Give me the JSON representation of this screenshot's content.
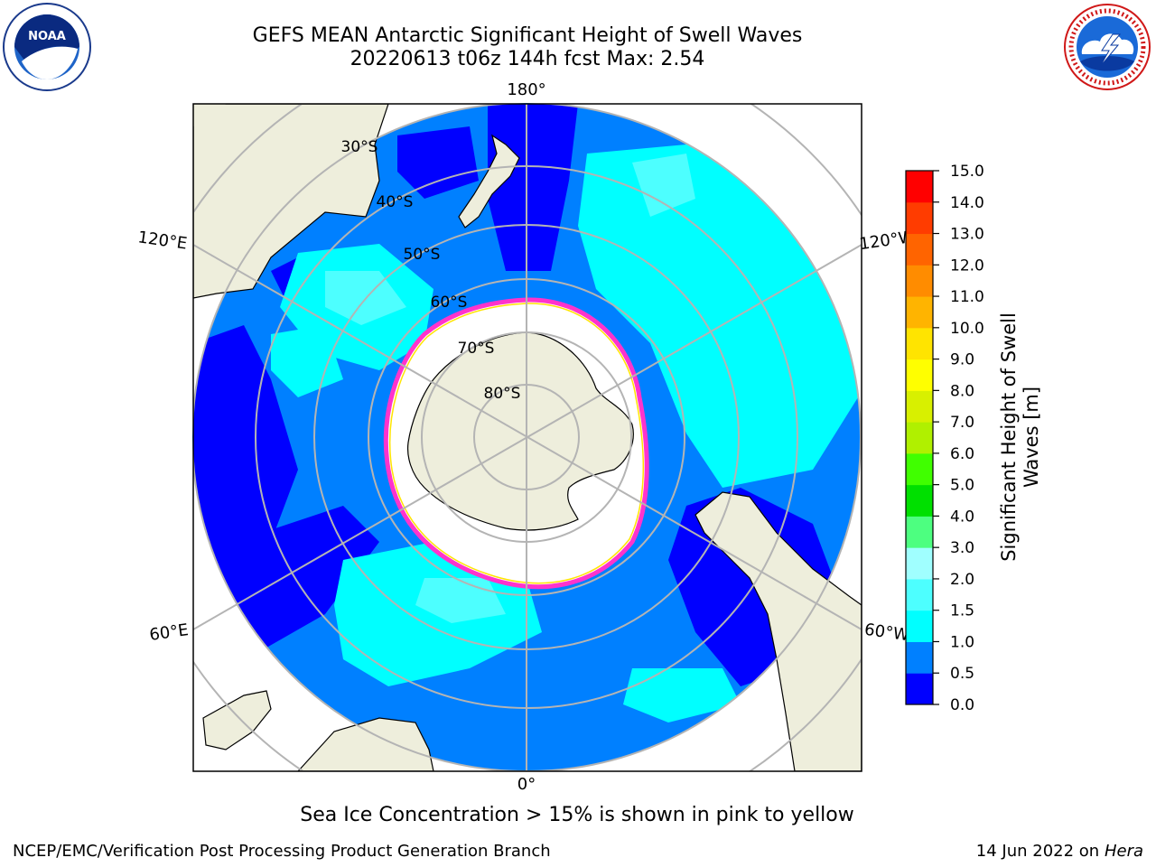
{
  "header": {
    "title_line1": "GEFS MEAN Antarctic Significant Height of Swell Waves",
    "title_line2": "20220613 t06z 144h fcst   Max: 2.54"
  },
  "logos": {
    "left": {
      "icon": "noaa-logo",
      "text": "NOAA",
      "ring_text": "NATIONAL OCEANIC AND ATMOSPHERIC ADMINISTRATION · U.S. DEPARTMENT OF COMMERCE"
    },
    "right": {
      "icon": "nws-logo",
      "ring_text": "NATIONAL WEATHER SERVICE"
    }
  },
  "map": {
    "projection": "south-polar-stereographic",
    "lon_labels": {
      "top": "180°",
      "bottom": "0°",
      "upper_left": "120°E",
      "upper_right": "120°W",
      "lower_left": "60°E",
      "lower_right": "60°W"
    },
    "lat_labels": [
      "30°S",
      "40°S",
      "50°S",
      "60°S",
      "70°S",
      "80°S"
    ],
    "colors": {
      "land": "#eeeedc",
      "ice": "#ffffff",
      "ice_edge": "#ff33cc",
      "grid": "#b4b4b4"
    }
  },
  "colorbar": {
    "label": "Significant Height of Swell Waves [m]",
    "label_line1": "Significant Height of Swell",
    "label_line2": "Waves [m]",
    "ticks": [
      "0.0",
      "0.5",
      "1.0",
      "1.5",
      "2.0",
      "3.0",
      "4.0",
      "5.0",
      "6.0",
      "7.0",
      "8.0",
      "9.0",
      "10.0",
      "11.0",
      "12.0",
      "13.0",
      "14.0",
      "15.0"
    ],
    "colors": [
      "#0000ff",
      "#0080ff",
      "#00ffff",
      "#4dffff",
      "#a0ffff",
      "#4dff80",
      "#00e000",
      "#40ff00",
      "#b0f000",
      "#d8f000",
      "#ffff00",
      "#ffe400",
      "#ffb400",
      "#ff8c00",
      "#ff6400",
      "#ff3c00",
      "#ff0000"
    ]
  },
  "caption": "Sea Ice Concentration > 15% is shown in pink to yellow",
  "footer": {
    "credit": "NCEP/EMC/Verification Post Processing Product Generation Branch",
    "date": "14 Jun 2022 on",
    "host": "Hera"
  }
}
